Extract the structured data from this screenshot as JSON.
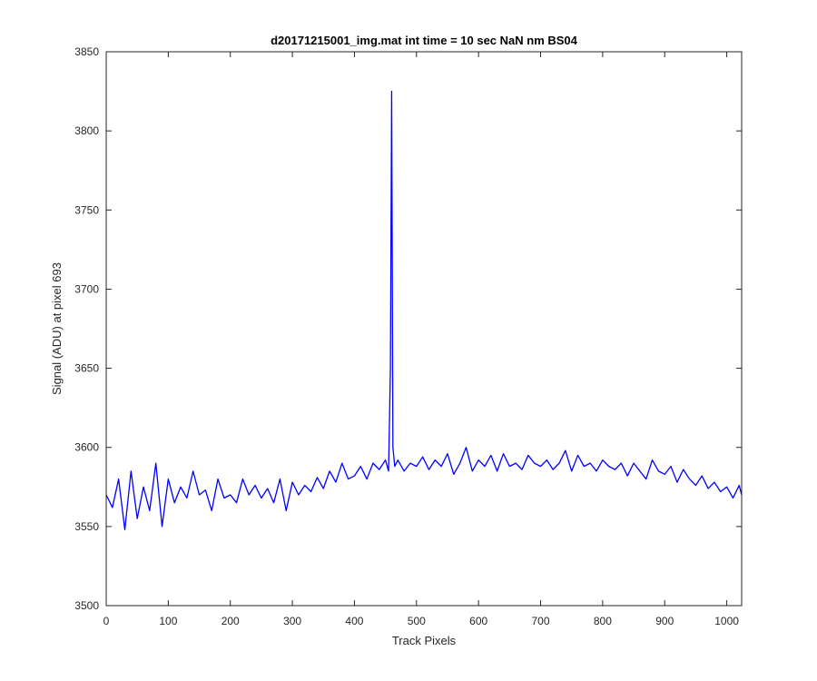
{
  "chart_data": {
    "type": "line",
    "title": "d20171215001_img.mat int time = 10 sec  NaN nm BS04",
    "xlabel": "Track Pixels",
    "ylabel": "Signal (ADU) at pixel 693",
    "xlim": [
      0,
      1024
    ],
    "ylim": [
      3500,
      3850
    ],
    "xticks": [
      0,
      100,
      200,
      300,
      400,
      500,
      600,
      700,
      800,
      900,
      1000
    ],
    "yticks": [
      3500,
      3550,
      3600,
      3650,
      3700,
      3750,
      3800,
      3850
    ],
    "grid": false,
    "legend": "none",
    "series": [
      {
        "color": "#0000ff",
        "x": [
          0,
          10,
          20,
          30,
          40,
          50,
          60,
          70,
          80,
          90,
          100,
          110,
          120,
          130,
          140,
          150,
          160,
          170,
          180,
          190,
          200,
          210,
          220,
          230,
          240,
          250,
          260,
          270,
          280,
          290,
          300,
          310,
          320,
          330,
          340,
          350,
          360,
          370,
          380,
          390,
          400,
          410,
          420,
          430,
          440,
          450,
          455,
          458,
          460,
          462,
          465,
          470,
          480,
          490,
          500,
          510,
          520,
          530,
          540,
          550,
          560,
          570,
          580,
          590,
          600,
          610,
          620,
          630,
          640,
          650,
          660,
          670,
          680,
          690,
          700,
          710,
          720,
          730,
          740,
          750,
          760,
          770,
          780,
          790,
          800,
          810,
          820,
          830,
          840,
          850,
          860,
          870,
          880,
          890,
          900,
          910,
          920,
          930,
          940,
          950,
          960,
          970,
          980,
          990,
          1000,
          1010,
          1020,
          1024
        ],
        "y": [
          3570,
          3562,
          3580,
          3548,
          3585,
          3555,
          3575,
          3560,
          3590,
          3550,
          3580,
          3565,
          3575,
          3568,
          3585,
          3570,
          3573,
          3560,
          3580,
          3568,
          3570,
          3565,
          3580,
          3570,
          3576,
          3568,
          3574,
          3565,
          3580,
          3560,
          3578,
          3570,
          3576,
          3572,
          3581,
          3574,
          3585,
          3578,
          3590,
          3580,
          3582,
          3588,
          3580,
          3590,
          3586,
          3592,
          3585,
          3650,
          3825,
          3600,
          3588,
          3592,
          3585,
          3590,
          3588,
          3594,
          3586,
          3592,
          3588,
          3596,
          3583,
          3590,
          3600,
          3585,
          3592,
          3588,
          3595,
          3585,
          3596,
          3588,
          3590,
          3586,
          3595,
          3590,
          3588,
          3592,
          3586,
          3590,
          3598,
          3585,
          3595,
          3588,
          3590,
          3585,
          3592,
          3588,
          3586,
          3590,
          3582,
          3590,
          3585,
          3580,
          3592,
          3585,
          3583,
          3588,
          3578,
          3586,
          3580,
          3576,
          3582,
          3574,
          3578,
          3572,
          3575,
          3568,
          3576,
          3570
        ]
      }
    ]
  }
}
